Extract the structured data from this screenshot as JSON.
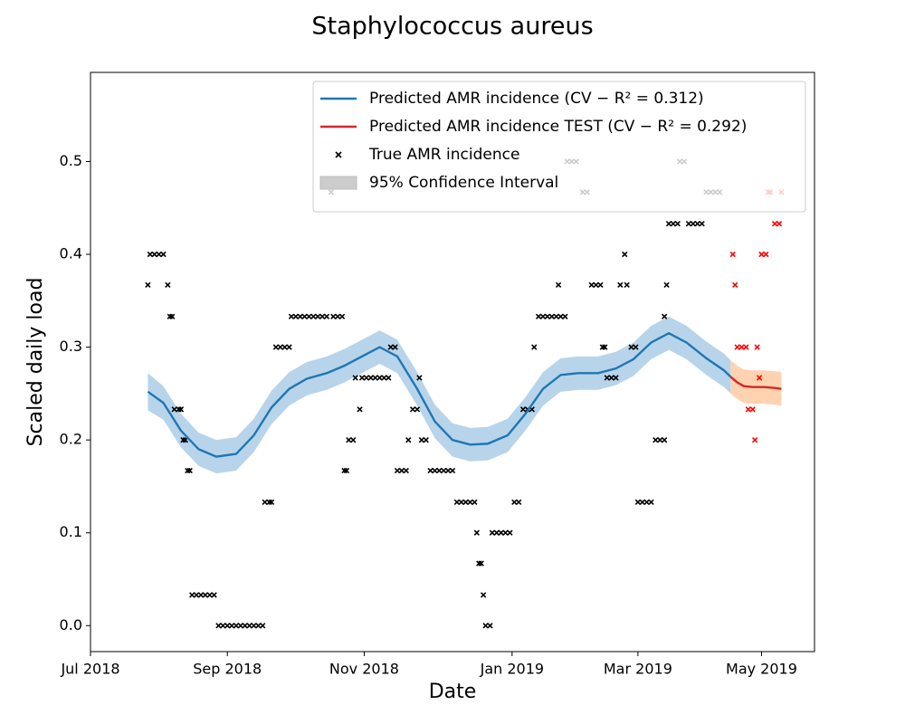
{
  "chart_data": {
    "type": "line",
    "title": "Staphylococcus aureus",
    "xlabel": "Date",
    "ylabel": "Scaled daily load",
    "xlim": [
      0,
      328
    ],
    "xticks": [
      {
        "value": 0,
        "label": "Jul 2018"
      },
      {
        "value": 62,
        "label": "Sep 2018"
      },
      {
        "value": 124,
        "label": "Nov 2018"
      },
      {
        "value": 191,
        "label": "Jan 2019"
      },
      {
        "value": 248,
        "label": "Mar 2019"
      },
      {
        "value": 304,
        "label": "May 2019"
      }
    ],
    "ylim": [
      -0.028,
      0.596
    ],
    "yticks": [
      {
        "value": 0,
        "label": "0.0"
      },
      0.1,
      0.2,
      0.3,
      0.4,
      0.5
    ],
    "legend": "upper right",
    "series": [
      {
        "name": "Predicted AMR incidence (CV − R² = 0.312)",
        "type": "line",
        "color": "#1f77b4",
        "x": [
          26,
          33,
          41,
          49,
          57,
          66,
          74,
          82,
          90,
          98,
          107,
          115,
          123,
          131,
          139,
          148,
          156,
          164,
          172,
          180,
          189,
          197,
          205,
          213,
          221,
          230,
          238,
          246,
          254,
          262,
          270,
          279,
          287,
          290
        ],
        "values": [
          0.252,
          0.24,
          0.21,
          0.19,
          0.182,
          0.185,
          0.205,
          0.235,
          0.255,
          0.266,
          0.272,
          0.28,
          0.29,
          0.3,
          0.29,
          0.255,
          0.22,
          0.2,
          0.195,
          0.196,
          0.205,
          0.228,
          0.255,
          0.27,
          0.272,
          0.272,
          0.277,
          0.287,
          0.305,
          0.315,
          0.305,
          0.288,
          0.275,
          0.268
        ],
        "lower": [
          0.232,
          0.222,
          0.192,
          0.172,
          0.164,
          0.167,
          0.187,
          0.217,
          0.237,
          0.248,
          0.254,
          0.262,
          0.272,
          0.282,
          0.272,
          0.237,
          0.202,
          0.182,
          0.177,
          0.178,
          0.187,
          0.21,
          0.237,
          0.252,
          0.254,
          0.254,
          0.259,
          0.269,
          0.287,
          0.297,
          0.287,
          0.27,
          0.257,
          0.25
        ],
        "upper": [
          0.272,
          0.258,
          0.228,
          0.208,
          0.2,
          0.203,
          0.223,
          0.253,
          0.273,
          0.284,
          0.29,
          0.298,
          0.308,
          0.318,
          0.308,
          0.273,
          0.238,
          0.218,
          0.213,
          0.214,
          0.223,
          0.246,
          0.273,
          0.288,
          0.29,
          0.29,
          0.295,
          0.305,
          0.323,
          0.333,
          0.323,
          0.306,
          0.293,
          0.286
        ],
        "band_color": "#b8d4ea"
      },
      {
        "name": "Predicted AMR incidence TEST (CV − R² = 0.292)",
        "type": "line",
        "color": "#d62728",
        "x": [
          290,
          293,
          296,
          300,
          305,
          310,
          313
        ],
        "values": [
          0.268,
          0.262,
          0.258,
          0.257,
          0.257,
          0.256,
          0.255
        ],
        "lower": [
          0.25,
          0.244,
          0.24,
          0.239,
          0.239,
          0.238,
          0.237
        ],
        "upper": [
          0.286,
          0.28,
          0.276,
          0.275,
          0.275,
          0.274,
          0.273
        ],
        "band_color": "#ffd2b0"
      },
      {
        "name": "True AMR incidence",
        "type": "scatter",
        "color": "#000000",
        "x": [
          26,
          27,
          29,
          31,
          33,
          35,
          36,
          37,
          38,
          40,
          41,
          42,
          43,
          44,
          45,
          46,
          48,
          50,
          52,
          54,
          56,
          58,
          60,
          62,
          64,
          66,
          68,
          70,
          72,
          74,
          76,
          78,
          79,
          81,
          82,
          84,
          86,
          88,
          90,
          91,
          93,
          95,
          97,
          99,
          101,
          103,
          105,
          107,
          109,
          110,
          112,
          114,
          115,
          116,
          117,
          119,
          120,
          122,
          123,
          125,
          127,
          129,
          131,
          133,
          135,
          136,
          138,
          139,
          141,
          143,
          144,
          146,
          148,
          149,
          150,
          152,
          154,
          156,
          158,
          160,
          162,
          164,
          166,
          168,
          170,
          172,
          174,
          175,
          176,
          177,
          178,
          179,
          181,
          182,
          184,
          186,
          188,
          190,
          192,
          194,
          196,
          198,
          200,
          201,
          203,
          205,
          207,
          209,
          211,
          212,
          213,
          215,
          216,
          218,
          220,
          223,
          225,
          227,
          229,
          231,
          232,
          233,
          234,
          236,
          238,
          240,
          242,
          243,
          245,
          247,
          248,
          250,
          252,
          254,
          256,
          258,
          260,
          260,
          261,
          262,
          264,
          266,
          267,
          269,
          271,
          273,
          275,
          277,
          279,
          281,
          283,
          285
        ],
        "values": [
          0.367,
          0.4,
          0.4,
          0.4,
          0.4,
          0.367,
          0.333,
          0.333,
          0.233,
          0.233,
          0.233,
          0.2,
          0.2,
          0.167,
          0.167,
          0.033,
          0.033,
          0.033,
          0.033,
          0.033,
          0.033,
          0,
          0,
          0,
          0,
          0,
          0,
          0,
          0,
          0,
          0,
          0,
          0.133,
          0.133,
          0.133,
          0.3,
          0.3,
          0.3,
          0.3,
          0.333,
          0.333,
          0.333,
          0.333,
          0.333,
          0.333,
          0.333,
          0.333,
          0.333,
          0.467,
          0.333,
          0.333,
          0.333,
          0.167,
          0.167,
          0.2,
          0.2,
          0.267,
          0.233,
          0.267,
          0.267,
          0.267,
          0.267,
          0.267,
          0.267,
          0.267,
          0.3,
          0.3,
          0.167,
          0.167,
          0.167,
          0.2,
          0.233,
          0.233,
          0.267,
          0.2,
          0.2,
          0.167,
          0.167,
          0.167,
          0.167,
          0.167,
          0.167,
          0.133,
          0.133,
          0.133,
          0.133,
          0.133,
          0.1,
          0.067,
          0.067,
          0.033,
          0,
          0,
          0.1,
          0.1,
          0.1,
          0.1,
          0.1,
          0.133,
          0.133,
          0.233,
          0.233,
          0.233,
          0.3,
          0.333,
          0.333,
          0.333,
          0.333,
          0.333,
          0.367,
          0.333,
          0.333,
          0.5,
          0.5,
          0.5,
          0.467,
          0.467,
          0.367,
          0.367,
          0.367,
          0.3,
          0.3,
          0.267,
          0.267,
          0.267,
          0.367,
          0.4,
          0.367,
          0.3,
          0.3,
          0.133,
          0.133,
          0.133,
          0.133,
          0.2,
          0.2,
          0.2,
          0.333,
          0.367,
          0.433,
          0.433,
          0.433,
          0.5,
          0.5,
          0.433,
          0.433,
          0.433,
          0.433,
          0.467,
          0.467,
          0.467,
          0.467
        ]
      },
      {
        "name": "95% Confidence Interval",
        "type": "band",
        "color": "#cccccc"
      },
      {
        "type": "scatter",
        "color": "#ff0000",
        "x": [
          291,
          292,
          293,
          295,
          297,
          298,
          300,
          301,
          302,
          303,
          304,
          306,
          307,
          308,
          310,
          312,
          313
        ],
        "values": [
          0.4,
          0.367,
          0.3,
          0.3,
          0.3,
          0.233,
          0.233,
          0.2,
          0.3,
          0.267,
          0.4,
          0.4,
          0.467,
          0.467,
          0.433,
          0.433,
          0.467
        ]
      }
    ]
  }
}
